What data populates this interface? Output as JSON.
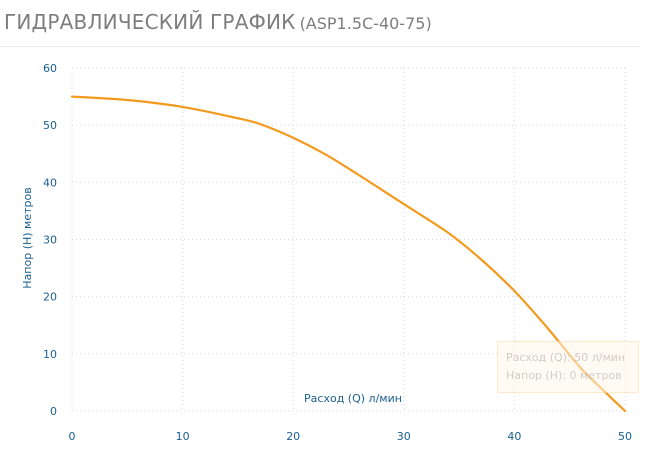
{
  "header": {
    "title": "ГИДРАВЛИЧЕСКИЙ ГРАФИК",
    "model": "(ASP1.5C-40-75)"
  },
  "tooltip": {
    "flow_text": "Расход (Q):  50 л/мин",
    "head_text": "Напор (H):  0 метров"
  },
  "colors": {
    "curve": "#f39a1e",
    "axis_text": "#1a5f91",
    "title": "#7d7d7d"
  },
  "chart_data": {
    "type": "line",
    "title": "ГИДРАВЛИЧЕСКИЙ ГРАФИК (ASP1.5C-40-75)",
    "xlabel": "Расход (Q) л/мин",
    "ylabel": "Напор (H) метров",
    "xlim": [
      0,
      50
    ],
    "ylim": [
      0,
      60
    ],
    "xticks": [
      0,
      10,
      20,
      30,
      40,
      50
    ],
    "yticks": [
      0,
      10,
      20,
      30,
      40,
      50,
      60
    ],
    "grid": true,
    "series": [
      {
        "x": [
          0,
          5,
          10,
          15,
          17,
          20,
          23,
          26,
          30,
          34,
          37,
          40,
          43,
          46,
          48,
          50
        ],
        "y": [
          55,
          54.4,
          53.2,
          51.2,
          50.2,
          47.8,
          44.8,
          41.2,
          36.2,
          31.2,
          26.5,
          21,
          14.5,
          7.5,
          3.7,
          0
        ]
      }
    ]
  }
}
